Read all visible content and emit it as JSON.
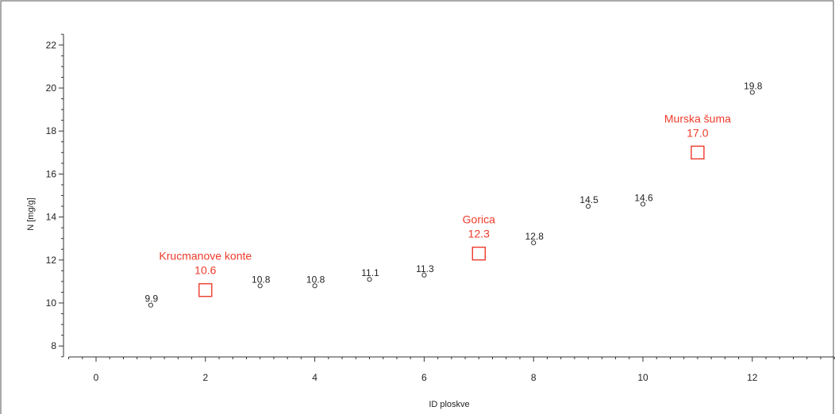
{
  "chart_data": {
    "type": "scatter",
    "xlabel": "ID ploskve",
    "ylabel": "N [mg/g]",
    "xlim": [
      -0.5,
      13.5
    ],
    "ylim": [
      7.5,
      22.5
    ],
    "x_ticks": [
      0,
      2,
      4,
      6,
      8,
      10,
      12
    ],
    "y_ticks": [
      8,
      10,
      12,
      14,
      16,
      18,
      20,
      22
    ],
    "grid": false,
    "series": [
      {
        "marker": "circle",
        "color": "#333333",
        "points": [
          {
            "x": 1,
            "y": 9.9,
            "label": "9.9"
          },
          {
            "x": 3,
            "y": 10.8,
            "label": "10.8"
          },
          {
            "x": 4,
            "y": 10.8,
            "label": "10.8"
          },
          {
            "x": 5,
            "y": 11.1,
            "label": "11.1"
          },
          {
            "x": 6,
            "y": 11.3,
            "label": "11.3"
          },
          {
            "x": 8,
            "y": 12.8,
            "label": "12.8"
          },
          {
            "x": 9,
            "y": 14.5,
            "label": "14.5"
          },
          {
            "x": 10,
            "y": 14.6,
            "label": "14.6"
          },
          {
            "x": 12,
            "y": 19.8,
            "label": "19.8"
          }
        ]
      },
      {
        "marker": "square",
        "color": "#ee3b2b",
        "points": [
          {
            "x": 2,
            "y": 10.6,
            "name": "Krucmanove konte",
            "label": "10.6"
          },
          {
            "x": 7,
            "y": 12.3,
            "name": "Gorica",
            "label": "12.3"
          },
          {
            "x": 11,
            "y": 17.0,
            "name": "Murska šuma",
            "label": "17.0"
          }
        ]
      }
    ]
  }
}
